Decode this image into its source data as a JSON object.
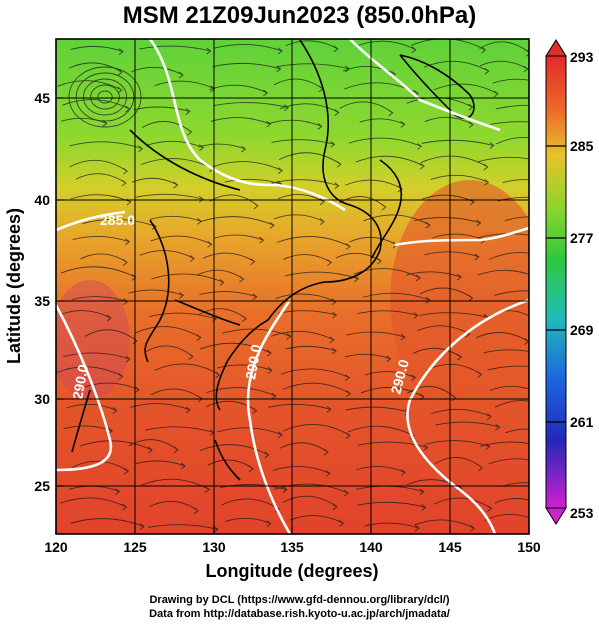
{
  "title": "MSM 21Z09Jun2023 (850.0hPa)",
  "axes": {
    "x_label": "Longitude (degrees)",
    "y_label": "Latitude  (degrees)",
    "x_ticks": [
      "120",
      "125",
      "130",
      "135",
      "140",
      "145",
      "150"
    ],
    "y_ticks": [
      "25",
      "30",
      "35",
      "40",
      "45"
    ]
  },
  "colorbar": {
    "labels": [
      "293",
      "285",
      "277",
      "269",
      "261",
      "253"
    ],
    "colors": [
      "#e0302a",
      "#ea6a25",
      "#d8c826",
      "#35c93a",
      "#1fb9b9",
      "#1d55e0",
      "#2a2ab5",
      "#c020c8"
    ]
  },
  "contour_labels": [
    "285.0",
    "290.0",
    "290.0",
    "290.0"
  ],
  "credits": {
    "line1": "Drawing by DCL (https://www.gfd-dennou.org/library/dcl/)",
    "line2": "Data from http://database.rish.kyoto-u.ac.jp/arch/jmadata/"
  }
}
